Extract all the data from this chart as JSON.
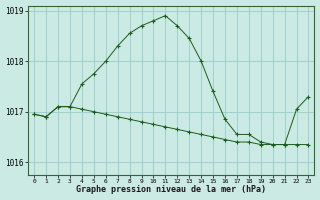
{
  "line1": [
    1016.95,
    1016.9,
    1017.1,
    1017.1,
    1017.05,
    1017.0,
    1016.95,
    1016.9,
    1016.85,
    1016.8,
    1016.75,
    1016.7,
    1016.65,
    1016.6,
    1016.55,
    1016.5,
    1016.45,
    1016.4,
    1016.4,
    1016.35,
    1016.35,
    1016.35,
    1016.35,
    1016.35
  ],
  "line2": [
    1016.95,
    1016.9,
    1017.1,
    1017.1,
    1017.55,
    1017.75,
    1018.0,
    1018.3,
    1018.55,
    1018.7,
    1018.8,
    1018.9,
    1018.7,
    1018.45,
    1018.0,
    1017.4,
    1016.85,
    1016.55,
    1016.55,
    1016.4,
    1016.35,
    1016.35,
    1017.05,
    1017.3
  ],
  "hours": [
    0,
    1,
    2,
    3,
    4,
    5,
    6,
    7,
    8,
    9,
    10,
    11,
    12,
    13,
    14,
    15,
    16,
    17,
    18,
    19,
    20,
    21,
    22,
    23
  ],
  "ylim": [
    1015.75,
    1019.1
  ],
  "yticks": [
    1016,
    1017,
    1018,
    1019
  ],
  "background_color": "#cceae4",
  "grid_color": "#99cccc",
  "line_color": "#1a5c1a",
  "xlabel": "Graphe pression niveau de la mer (hPa)",
  "marker": "+"
}
